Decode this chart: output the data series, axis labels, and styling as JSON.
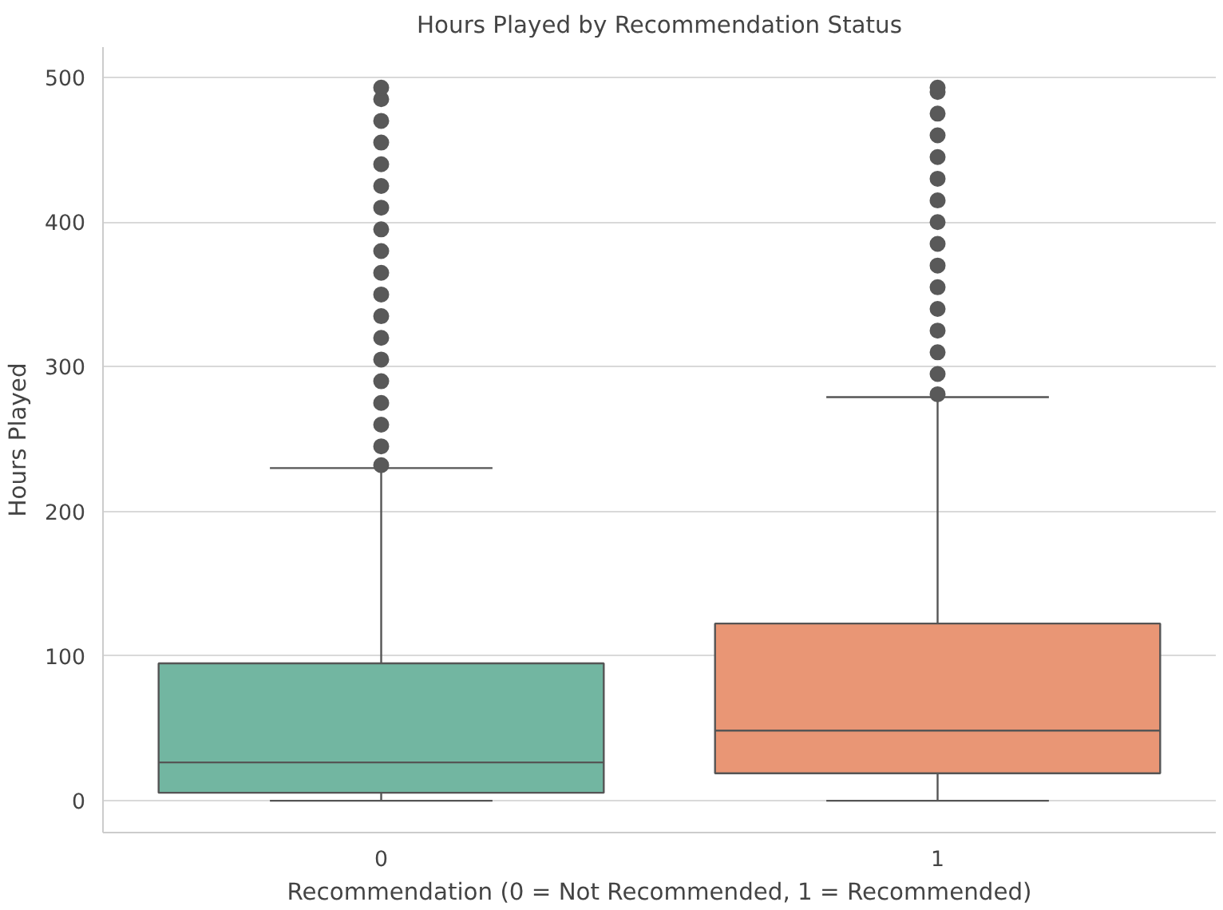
{
  "chart_data": {
    "type": "box",
    "title": "Hours Played by Recommendation Status",
    "xlabel": "Recommendation (0 = Not Recommended, 1 = Recommended)",
    "ylabel": "Hours Played",
    "categories": [
      "0",
      "1"
    ],
    "colors": [
      "#72b6a1",
      "#e99675"
    ],
    "boxes": [
      {
        "low": 0,
        "q1": 5.5,
        "median": 26.5,
        "q3": 95,
        "high": 230,
        "outliers": [
          232,
          245,
          260,
          275,
          290,
          305,
          320,
          335,
          350,
          365,
          380,
          395,
          410,
          425,
          440,
          455,
          470,
          485,
          493
        ]
      },
      {
        "low": 0,
        "q1": 19,
        "median": 48.5,
        "q3": 122.5,
        "high": 279,
        "outliers": [
          281,
          295,
          310,
          325,
          340,
          355,
          370,
          385,
          400,
          415,
          430,
          445,
          460,
          475,
          490,
          493
        ]
      }
    ],
    "ylim": [
      -22,
      521
    ],
    "yticks": [
      0,
      100,
      200,
      300,
      400,
      500
    ],
    "grid": "y"
  }
}
